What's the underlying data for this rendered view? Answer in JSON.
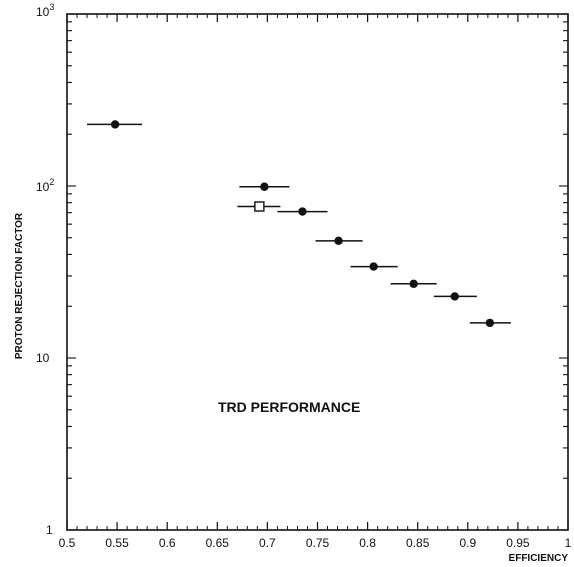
{
  "chart_data": {
    "type": "scatter",
    "title": "",
    "xlabel": "EFFICIENCY",
    "ylabel": "PROTON REJECTION FACTOR",
    "xlim": [
      0.5,
      1.0
    ],
    "ylim": [
      1,
      1000
    ],
    "y_scale": "log",
    "grid": false,
    "legend": "none",
    "annotation": "TRD PERFORMANCE",
    "x_ticks": [
      "0.5",
      "0.55",
      "0.6",
      "0.65",
      "0.7",
      "0.75",
      "0.8",
      "0.85",
      "0.9",
      "0.95",
      "1"
    ],
    "series": [
      {
        "marker": "filled-circle",
        "points": [
          {
            "x": 0.548,
            "y": 228,
            "xerr": [
              0.52,
              0.575
            ]
          },
          {
            "x": 0.697,
            "y": 99,
            "xerr": [
              0.672,
              0.722
            ]
          },
          {
            "x": 0.735,
            "y": 71,
            "xerr": [
              0.71,
              0.76
            ]
          },
          {
            "x": 0.771,
            "y": 48,
            "xerr": [
              0.748,
              0.795
            ]
          },
          {
            "x": 0.806,
            "y": 34,
            "xerr": [
              0.783,
              0.83
            ]
          },
          {
            "x": 0.846,
            "y": 27,
            "xerr": [
              0.823,
              0.869
            ]
          },
          {
            "x": 0.887,
            "y": 22.8,
            "xerr": [
              0.866,
              0.909
            ]
          },
          {
            "x": 0.922,
            "y": 16,
            "xerr": [
              0.902,
              0.943
            ]
          }
        ]
      },
      {
        "marker": "open-square",
        "points": [
          {
            "x": 0.692,
            "y": 76,
            "xerr": [
              0.67,
              0.713
            ]
          }
        ]
      }
    ]
  },
  "colors": {
    "ink": "#111111",
    "background": "#ffffff"
  }
}
